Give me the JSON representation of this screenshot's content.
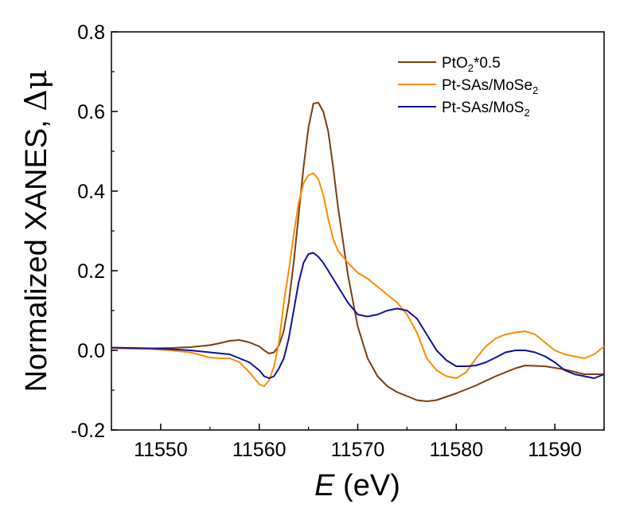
{
  "chart_data": {
    "type": "line",
    "xlabel_italic": "E",
    "xlabel_rest": " (eV)",
    "ylabel_text": "Normalized XANES, ",
    "ylabel_symbol": "Δμ",
    "xlim": [
      11545,
      11595
    ],
    "ylim": [
      -0.2,
      0.8
    ],
    "xticks": [
      11550,
      11560,
      11570,
      11580,
      11590
    ],
    "xtick_labels": [
      "11550",
      "11560",
      "11570",
      "11580",
      "11590"
    ],
    "yticks": [
      -0.2,
      0.0,
      0.2,
      0.4,
      0.6,
      0.8
    ],
    "ytick_labels": [
      "-0.2",
      "0.0",
      "0.2",
      "0.4",
      "0.6",
      "0.8"
    ],
    "grid": false,
    "legend_position": "top-right",
    "series": [
      {
        "name_parts": [
          "PtO",
          "2",
          "*0.5"
        ],
        "color": "#7B3F10",
        "x": [
          11545,
          11547,
          11549,
          11551,
          11553,
          11555,
          11556,
          11557,
          11558,
          11559,
          11560,
          11560.5,
          11561,
          11561.5,
          11562,
          11562.5,
          11563,
          11563.5,
          11564,
          11564.5,
          11565,
          11565.5,
          11566,
          11566.5,
          11567,
          11567.5,
          11568,
          11569,
          11570,
          11571,
          11572,
          11573,
          11574,
          11575,
          11576,
          11577,
          11578,
          11580,
          11582,
          11584,
          11586,
          11587,
          11589,
          11591,
          11593,
          11595
        ],
        "y": [
          0.005,
          0.005,
          0.005,
          0.006,
          0.008,
          0.013,
          0.018,
          0.024,
          0.026,
          0.02,
          0.01,
          0.0,
          -0.008,
          -0.005,
          0.012,
          0.05,
          0.12,
          0.22,
          0.34,
          0.46,
          0.56,
          0.62,
          0.622,
          0.6,
          0.55,
          0.46,
          0.36,
          0.19,
          0.06,
          -0.02,
          -0.065,
          -0.09,
          -0.105,
          -0.115,
          -0.125,
          -0.128,
          -0.125,
          -0.108,
          -0.088,
          -0.065,
          -0.045,
          -0.038,
          -0.04,
          -0.048,
          -0.06,
          -0.06
        ]
      },
      {
        "name_parts": [
          "Pt-SAs/MoSe",
          "2",
          ""
        ],
        "color": "#FF8C00",
        "x": [
          11545,
          11547,
          11549,
          11551,
          11553,
          11555,
          11556,
          11557,
          11558,
          11559,
          11560,
          11560.5,
          11561,
          11561.5,
          11562,
          11562.5,
          11563,
          11563.5,
          11564,
          11564.5,
          11565,
          11565.5,
          11566,
          11566.5,
          11567,
          11567.5,
          11568,
          11569,
          11570,
          11571,
          11572,
          11573,
          11574,
          11575,
          11576,
          11577,
          11578,
          11579,
          11580,
          11581,
          11582,
          11583,
          11584,
          11585,
          11586,
          11587,
          11588,
          11589,
          11590,
          11591,
          11592,
          11593,
          11594,
          11595
        ],
        "y": [
          0.005,
          0.004,
          0.003,
          0.0,
          -0.005,
          -0.018,
          -0.02,
          -0.02,
          -0.03,
          -0.055,
          -0.085,
          -0.09,
          -0.075,
          -0.04,
          0.02,
          0.12,
          0.2,
          0.29,
          0.37,
          0.42,
          0.44,
          0.445,
          0.43,
          0.39,
          0.33,
          0.28,
          0.25,
          0.22,
          0.195,
          0.18,
          0.16,
          0.14,
          0.12,
          0.09,
          0.045,
          -0.02,
          -0.05,
          -0.065,
          -0.07,
          -0.055,
          -0.02,
          0.01,
          0.03,
          0.04,
          0.045,
          0.048,
          0.04,
          0.02,
          0.0,
          -0.01,
          -0.015,
          -0.02,
          -0.01,
          0.01
        ]
      },
      {
        "name_parts": [
          "Pt-SAs/MoS",
          "2",
          ""
        ],
        "color": "#10129A",
        "x": [
          11545,
          11547,
          11549,
          11551,
          11553,
          11555,
          11557,
          11558,
          11559,
          11560,
          11560.5,
          11561,
          11561.5,
          11562,
          11562.5,
          11563,
          11563.5,
          11564,
          11564.5,
          11565,
          11565.5,
          11566,
          11566.5,
          11567,
          11567.5,
          11568,
          11569,
          11570,
          11571,
          11572,
          11573,
          11574,
          11575,
          11576,
          11577,
          11578,
          11579,
          11580,
          11581,
          11582,
          11583,
          11584,
          11585,
          11586,
          11587,
          11588,
          11589,
          11590,
          11591,
          11592,
          11593,
          11594,
          11595
        ],
        "y": [
          0.007,
          0.006,
          0.005,
          0.003,
          0.0,
          -0.005,
          -0.01,
          -0.02,
          -0.03,
          -0.05,
          -0.065,
          -0.07,
          -0.065,
          -0.045,
          -0.02,
          0.03,
          0.1,
          0.17,
          0.22,
          0.242,
          0.245,
          0.235,
          0.22,
          0.2,
          0.18,
          0.16,
          0.12,
          0.09,
          0.085,
          0.09,
          0.1,
          0.105,
          0.1,
          0.08,
          0.04,
          0.0,
          -0.025,
          -0.04,
          -0.04,
          -0.038,
          -0.03,
          -0.018,
          -0.005,
          0.0,
          0.0,
          -0.005,
          -0.015,
          -0.03,
          -0.05,
          -0.06,
          -0.065,
          -0.07,
          -0.06
        ]
      }
    ]
  }
}
